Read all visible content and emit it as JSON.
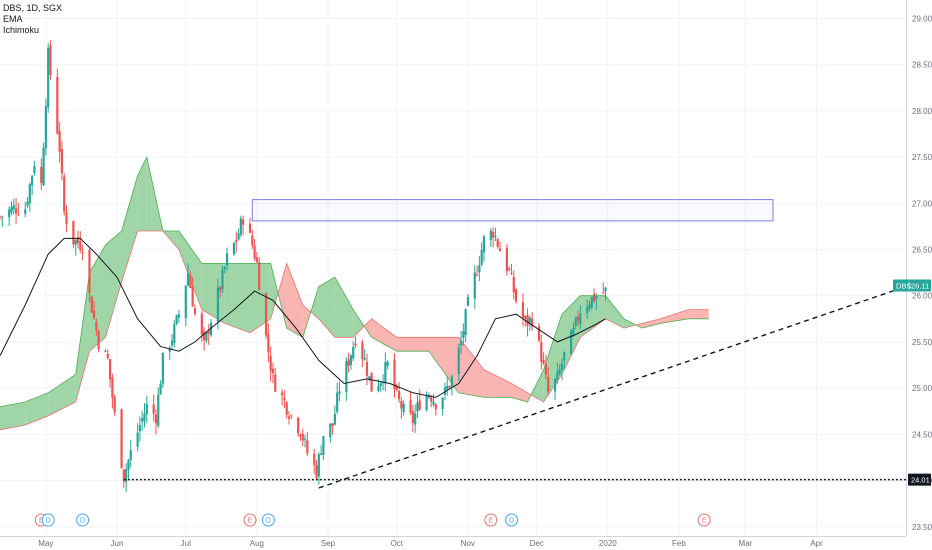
{
  "header": {
    "symbol_line": "DBS, 1D, SGX",
    "indicators": [
      "EMA",
      "Ichimoku"
    ]
  },
  "chart_data": {
    "type": "candlestick",
    "symbol": "DBS",
    "interval": "1D",
    "exchange": "SGX",
    "ylim": [
      23.4,
      29.2
    ],
    "y_ticks": [
      29.0,
      28.5,
      28.0,
      27.5,
      27.0,
      26.5,
      26.0,
      25.5,
      25.0,
      24.5,
      24.0,
      23.5
    ],
    "y_tick_labels": [
      "29.00",
      "28.50",
      "28.00",
      "27.50",
      "27.00",
      "26.50",
      "26.00",
      "25.50",
      "25.00",
      "24.50",
      "24.00",
      "23.50"
    ],
    "x_range": [
      "2019-04-11",
      "2020-05-10"
    ],
    "x_ticks": [
      {
        "label": "May",
        "date": "2019-05-01"
      },
      {
        "label": "Jun",
        "date": "2019-06-01"
      },
      {
        "label": "Jul",
        "date": "2019-07-01"
      },
      {
        "label": "Aug",
        "date": "2019-08-01"
      },
      {
        "label": "Sep",
        "date": "2019-09-01"
      },
      {
        "label": "Oct",
        "date": "2019-10-01"
      },
      {
        "label": "Nov",
        "date": "2019-11-01"
      },
      {
        "label": "Dec",
        "date": "2019-12-01"
      },
      {
        "label": "2020",
        "date": "2020-01-01"
      },
      {
        "label": "Feb",
        "date": "2020-02-01"
      },
      {
        "label": "Mar",
        "date": "2020-03-01"
      },
      {
        "label": "Apr",
        "date": "2020-04-01"
      }
    ],
    "price_label": {
      "symbol": "DBS",
      "value": "26.11"
    },
    "support_label": "24.01",
    "support_level": 24.01,
    "trendline": {
      "start": {
        "date": "2019-08-28",
        "price": 23.92
      },
      "end": {
        "date": "2020-05-10",
        "price": 26.1
      }
    },
    "resistance_box": {
      "start": "2019-07-30",
      "end": "2020-03-13",
      "top": 27.04,
      "bottom": 26.81
    },
    "price_anchors": [
      [
        "2019-04-11",
        26.85
      ],
      [
        "2019-04-17",
        26.95
      ],
      [
        "2019-04-22",
        26.95
      ],
      [
        "2019-04-26",
        27.45
      ],
      [
        "2019-04-29",
        27.2
      ],
      [
        "2019-05-02",
        28.6
      ],
      [
        "2019-05-07",
        27.6
      ],
      [
        "2019-05-09",
        26.9
      ],
      [
        "2019-05-13",
        26.6
      ],
      [
        "2019-05-17",
        26.55
      ],
      [
        "2019-05-20",
        26.0
      ],
      [
        "2019-05-24",
        25.5
      ],
      [
        "2019-05-28",
        25.3
      ],
      [
        "2019-05-31",
        24.7
      ],
      [
        "2019-06-04",
        24.05
      ],
      [
        "2019-06-07",
        24.3
      ],
      [
        "2019-06-11",
        24.6
      ],
      [
        "2019-06-14",
        24.8
      ],
      [
        "2019-06-18",
        24.7
      ],
      [
        "2019-06-21",
        25.3
      ],
      [
        "2019-06-25",
        25.55
      ],
      [
        "2019-06-28",
        25.8
      ],
      [
        "2019-07-02",
        26.25
      ],
      [
        "2019-07-05",
        25.8
      ],
      [
        "2019-07-09",
        25.45
      ],
      [
        "2019-07-12",
        25.75
      ],
      [
        "2019-07-16",
        26.1
      ],
      [
        "2019-07-19",
        26.4
      ],
      [
        "2019-07-23",
        26.6
      ],
      [
        "2019-07-26",
        26.85
      ],
      [
        "2019-07-30",
        26.55
      ],
      [
        "2019-08-01",
        26.35
      ],
      [
        "2019-08-05",
        25.55
      ],
      [
        "2019-08-08",
        25.1
      ],
      [
        "2019-08-13",
        24.85
      ],
      [
        "2019-08-16",
        24.7
      ],
      [
        "2019-08-20",
        24.55
      ],
      [
        "2019-08-23",
        24.3
      ],
      [
        "2019-08-27",
        24.1
      ],
      [
        "2019-08-30",
        24.5
      ],
      [
        "2019-09-03",
        24.6
      ],
      [
        "2019-09-06",
        25.0
      ],
      [
        "2019-09-10",
        25.3
      ],
      [
        "2019-09-13",
        25.55
      ],
      [
        "2019-09-17",
        25.3
      ],
      [
        "2019-09-20",
        25.0
      ],
      [
        "2019-09-24",
        25.1
      ],
      [
        "2019-09-27",
        25.25
      ],
      [
        "2019-10-01",
        24.9
      ],
      [
        "2019-10-04",
        24.75
      ],
      [
        "2019-10-08",
        24.65
      ],
      [
        "2019-10-11",
        24.85
      ],
      [
        "2019-10-15",
        24.95
      ],
      [
        "2019-10-18",
        24.85
      ],
      [
        "2019-10-22",
        24.95
      ],
      [
        "2019-10-25",
        25.1
      ],
      [
        "2019-10-29",
        25.5
      ],
      [
        "2019-11-01",
        25.9
      ],
      [
        "2019-11-05",
        26.3
      ],
      [
        "2019-11-08",
        26.6
      ],
      [
        "2019-11-12",
        26.7
      ],
      [
        "2019-11-15",
        26.5
      ],
      [
        "2019-11-19",
        26.25
      ],
      [
        "2019-11-22",
        25.95
      ],
      [
        "2019-11-26",
        25.7
      ],
      [
        "2019-11-29",
        25.75
      ],
      [
        "2019-12-03",
        25.35
      ],
      [
        "2019-12-06",
        24.95
      ],
      [
        "2019-12-10",
        25.1
      ],
      [
        "2019-12-13",
        25.35
      ],
      [
        "2019-12-17",
        25.6
      ],
      [
        "2019-12-20",
        25.85
      ],
      [
        "2019-12-24",
        25.95
      ],
      [
        "2019-12-27",
        26.0
      ],
      [
        "2019-12-31",
        26.05
      ]
    ],
    "ema_anchors": [
      [
        "2019-04-11",
        25.35
      ],
      [
        "2019-04-22",
        25.9
      ],
      [
        "2019-05-02",
        26.45
      ],
      [
        "2019-05-09",
        26.62
      ],
      [
        "2019-05-16",
        26.62
      ],
      [
        "2019-05-23",
        26.45
      ],
      [
        "2019-06-01",
        26.2
      ],
      [
        "2019-06-10",
        25.75
      ],
      [
        "2019-06-20",
        25.45
      ],
      [
        "2019-06-28",
        25.4
      ],
      [
        "2019-07-05",
        25.5
      ],
      [
        "2019-07-12",
        25.65
      ],
      [
        "2019-07-22",
        25.85
      ],
      [
        "2019-07-31",
        26.05
      ],
      [
        "2019-08-08",
        25.95
      ],
      [
        "2019-08-18",
        25.65
      ],
      [
        "2019-08-28",
        25.3
      ],
      [
        "2019-09-08",
        25.05
      ],
      [
        "2019-09-18",
        25.1
      ],
      [
        "2019-09-28",
        25.05
      ],
      [
        "2019-10-08",
        24.95
      ],
      [
        "2019-10-18",
        24.9
      ],
      [
        "2019-10-28",
        25.05
      ],
      [
        "2019-11-05",
        25.35
      ],
      [
        "2019-11-13",
        25.75
      ],
      [
        "2019-11-22",
        25.8
      ],
      [
        "2019-12-01",
        25.65
      ],
      [
        "2019-12-10",
        25.5
      ],
      [
        "2019-12-18",
        25.58
      ],
      [
        "2019-12-26",
        25.68
      ],
      [
        "2019-12-31",
        25.75
      ]
    ],
    "cloud_anchors": [
      [
        "2019-04-11",
        24.8,
        24.55
      ],
      [
        "2019-04-22",
        24.85,
        24.6
      ],
      [
        "2019-05-02",
        24.95,
        24.7
      ],
      [
        "2019-05-14",
        25.15,
        24.85
      ],
      [
        "2019-05-20",
        26.25,
        25.4
      ],
      [
        "2019-05-27",
        26.55,
        25.55
      ],
      [
        "2019-06-03",
        26.7,
        26.15
      ],
      [
        "2019-06-10",
        27.3,
        26.7
      ],
      [
        "2019-06-14",
        27.5,
        26.7
      ],
      [
        "2019-06-21",
        26.7,
        26.7
      ],
      [
        "2019-06-28",
        26.7,
        26.5
      ],
      [
        "2019-07-08",
        26.35,
        25.85
      ],
      [
        "2019-07-18",
        26.35,
        25.7
      ],
      [
        "2019-07-29",
        26.35,
        25.6
      ],
      [
        "2019-08-07",
        26.35,
        25.75
      ],
      [
        "2019-08-14",
        25.65,
        26.35
      ],
      [
        "2019-08-21",
        25.55,
        25.9
      ],
      [
        "2019-08-28",
        26.1,
        25.75
      ],
      [
        "2019-09-04",
        26.2,
        25.55
      ],
      [
        "2019-09-12",
        25.85,
        25.55
      ],
      [
        "2019-09-20",
        25.55,
        25.75
      ],
      [
        "2019-10-01",
        25.4,
        25.55
      ],
      [
        "2019-10-15",
        25.4,
        25.55
      ],
      [
        "2019-10-28",
        24.95,
        25.55
      ],
      [
        "2019-11-08",
        24.9,
        25.2
      ],
      [
        "2019-11-20",
        24.9,
        25.05
      ],
      [
        "2019-11-27",
        24.85,
        24.95
      ],
      [
        "2019-12-04",
        25.2,
        24.85
      ],
      [
        "2019-12-12",
        25.8,
        25.15
      ],
      [
        "2019-12-20",
        26.0,
        25.55
      ],
      [
        "2019-12-31",
        26.0,
        25.75
      ],
      [
        "2020-01-08",
        25.75,
        25.65
      ],
      [
        "2020-01-16",
        25.65,
        25.7
      ],
      [
        "2020-01-24",
        25.7,
        25.75
      ],
      [
        "2020-02-05",
        25.75,
        25.85
      ],
      [
        "2020-02-14",
        25.75,
        25.85
      ]
    ],
    "event_markers": [
      {
        "label": "E",
        "date": "2019-04-29"
      },
      {
        "label": "D",
        "date": "2019-05-02"
      },
      {
        "label": "D",
        "date": "2019-05-17"
      },
      {
        "label": "E",
        "date": "2019-07-29"
      },
      {
        "label": "D",
        "date": "2019-08-06"
      },
      {
        "label": "E",
        "date": "2019-11-11"
      },
      {
        "label": "D",
        "date": "2019-11-20"
      },
      {
        "label": "E",
        "date": "2020-02-12"
      }
    ],
    "colors": {
      "up": "#26a69a",
      "down": "#ef5350",
      "ema": "#131722",
      "cloud_bull": "#8fcf98",
      "cloud_bear": "#f8a8a3",
      "box": "#7b7bf0",
      "earnings": "#e57373",
      "dividends": "#42a5f5",
      "price_tag": "#26a69a",
      "support_tag": "#131722"
    }
  }
}
